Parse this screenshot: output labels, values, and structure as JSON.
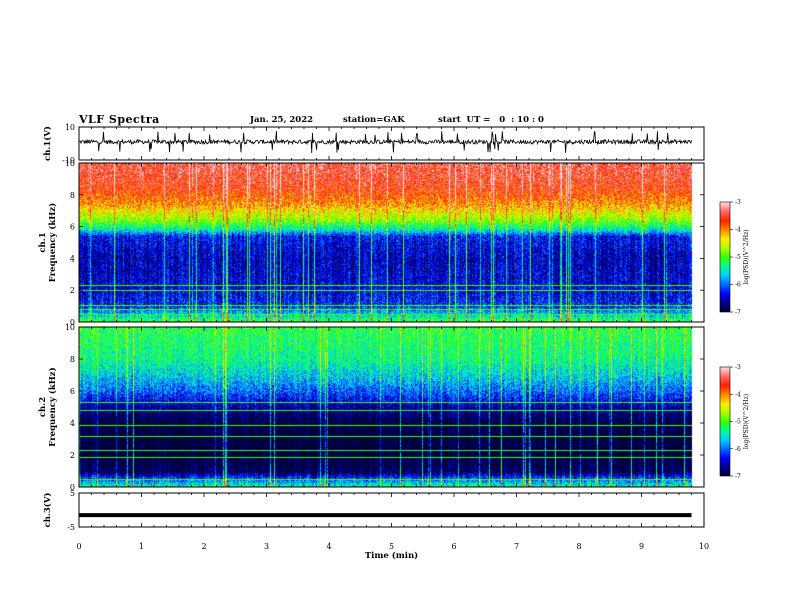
{
  "header": {
    "title": "VLF Spectra",
    "date": "Jan. 25, 2022",
    "station": "station=GAK",
    "start": "start  UT =   0  : 10 : 0"
  },
  "colors": {
    "colormap": [
      "#000033",
      "#00007f",
      "#0000ff",
      "#0066ff",
      "#00ccff",
      "#00ff99",
      "#33ff00",
      "#aaff00",
      "#ffee00",
      "#ff8800",
      "#ff2200",
      "#ff6666",
      "#ffdddd"
    ],
    "trace": "#000000",
    "axis": "#000000"
  },
  "chart_data": [
    {
      "type": "line",
      "id": "ch1_waveform",
      "ylabel": "ch.1(V)",
      "ylim": [
        -10,
        10
      ],
      "yticks": [
        -10,
        10
      ],
      "xlim": [
        0,
        10
      ],
      "baseline": 1.0,
      "noise_amplitude": 2.5,
      "data_end_min": 9.8
    },
    {
      "type": "heatmap",
      "id": "ch1_spectrogram",
      "ylabel_channel": "ch.1",
      "ylabel": "Frequency  (kHz)",
      "ylim": [
        0,
        10
      ],
      "yticks": [
        0,
        2,
        4,
        6,
        8,
        10
      ],
      "xlim": [
        0,
        10
      ],
      "data_end_min": 9.8,
      "value_label": "log(PSD)(V^2/Hz)",
      "colorbar_ticks": [
        -3,
        -4,
        -5,
        -6,
        -7
      ],
      "colorbar_range": [
        -7,
        -3
      ],
      "level_by_freq_khz": [
        [
          0.0,
          -5.0
        ],
        [
          0.5,
          -5.6
        ],
        [
          1.0,
          -6.2
        ],
        [
          2.0,
          -6.4
        ],
        [
          4.0,
          -6.5
        ],
        [
          5.4,
          -6.3
        ],
        [
          5.8,
          -5.5
        ],
        [
          6.5,
          -4.7
        ],
        [
          7.5,
          -4.0
        ],
        [
          8.5,
          -3.6
        ],
        [
          10.0,
          -3.4
        ]
      ],
      "horizontal_lines_khz": [
        0.5,
        0.8,
        1.1,
        2.0,
        2.3
      ]
    },
    {
      "type": "heatmap",
      "id": "ch2_spectrogram",
      "ylabel_channel": "ch.2",
      "ylabel": "Frequency  (kHz)",
      "ylim": [
        0,
        10
      ],
      "yticks": [
        0,
        2,
        4,
        6,
        8,
        10
      ],
      "xlim": [
        0,
        10
      ],
      "data_end_min": 9.8,
      "value_label": "log(PSD)(V^2/Hz)",
      "colorbar_ticks": [
        -3,
        -4,
        -5,
        -6,
        -7
      ],
      "colorbar_range": [
        -7,
        -3
      ],
      "level_by_freq_khz": [
        [
          0.0,
          -5.2
        ],
        [
          0.5,
          -6.0
        ],
        [
          1.0,
          -6.9
        ],
        [
          2.5,
          -7.1
        ],
        [
          4.0,
          -7.0
        ],
        [
          5.0,
          -6.6
        ],
        [
          6.0,
          -6.0
        ],
        [
          7.0,
          -5.6
        ],
        [
          8.0,
          -5.3
        ],
        [
          10.0,
          -5.1
        ]
      ],
      "horizontal_lines_khz": [
        0.5,
        1.9,
        2.3,
        3.2,
        3.9,
        4.8,
        5.3
      ]
    },
    {
      "type": "line",
      "id": "ch3_waveform",
      "ylabel": "ch.3(V)",
      "ylim": [
        -5,
        5
      ],
      "yticks": [
        -5,
        5
      ],
      "xlim": [
        0,
        10
      ],
      "value": -1.5,
      "data_end_min": 9.8
    }
  ],
  "x_axis": {
    "label": "Time  (min)",
    "ticks": [
      0,
      1,
      2,
      3,
      4,
      5,
      6,
      7,
      8,
      9,
      10
    ]
  }
}
